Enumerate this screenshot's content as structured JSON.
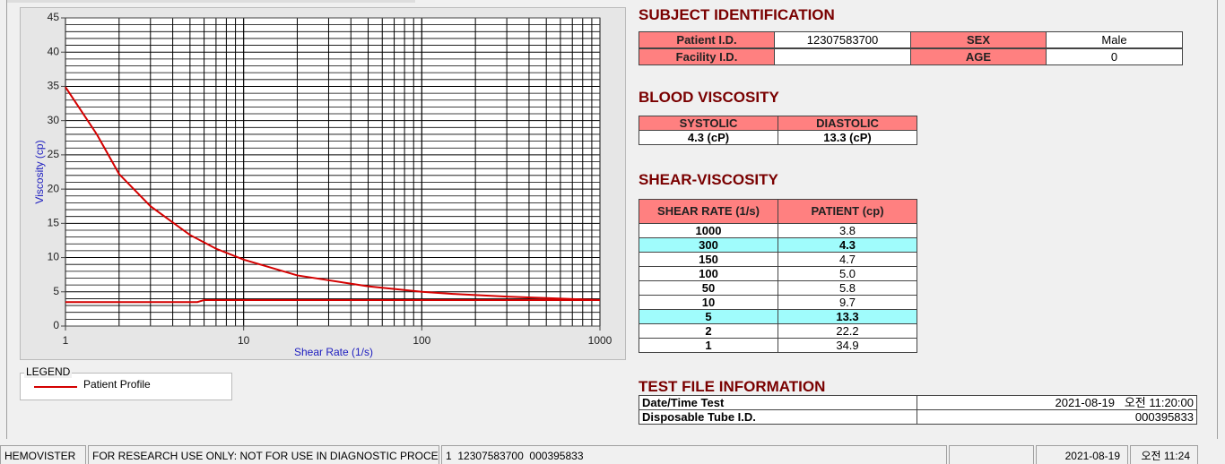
{
  "chart_data": {
    "type": "line",
    "x_label": "Shear Rate (1/s)",
    "y_label": "Viscosity (cp)",
    "log_x": true,
    "xlim": [
      1,
      1000
    ],
    "xticks": [
      1,
      10,
      100,
      1000
    ],
    "ylim": [
      0,
      45
    ],
    "yticks": [
      0,
      5,
      10,
      15,
      20,
      25,
      30,
      35,
      40,
      45
    ],
    "grid": true,
    "legend_title": "LEGEND",
    "series": [
      {
        "name": "Patient Profile",
        "color": "#d40000",
        "x": [
          1,
          1.5,
          2,
          3,
          5,
          7,
          10,
          20,
          50,
          100,
          150,
          300,
          1000
        ],
        "values": [
          34.9,
          28,
          22.2,
          17.5,
          13.3,
          11.3,
          9.7,
          7.4,
          5.8,
          5.0,
          4.7,
          4.3,
          3.8
        ]
      },
      {
        "color": "#d40000",
        "x": [
          1,
          5.5,
          6,
          1000
        ],
        "values": [
          3.5,
          3.5,
          3.8,
          3.8
        ]
      }
    ]
  },
  "subject": {
    "title": "SUBJECT IDENTIFICATION",
    "fields": [
      {
        "label": "Patient I.D.",
        "value": "12307583700"
      },
      {
        "label": "SEX",
        "value": "Male"
      },
      {
        "label": "Facility I.D."
      },
      {
        "label": "AGE",
        "value": "0"
      }
    ]
  },
  "blood_viscosity": {
    "title": "BLOOD VISCOSITY",
    "headers": [
      "SYSTOLIC",
      "DIASTOLIC"
    ],
    "values": [
      "4.3 (cP)",
      "13.3 (cP)"
    ]
  },
  "shear_viscosity": {
    "title": "SHEAR-VISCOSITY",
    "headers": [
      "SHEAR RATE (1/s)",
      "PATIENT (cp)"
    ],
    "rows": [
      {
        "rate": "1000",
        "viscosity": "3.8"
      },
      {
        "rate": "300",
        "viscosity": "4.3",
        "highlight": true
      },
      {
        "rate": "150",
        "viscosity": "4.7"
      },
      {
        "rate": "100",
        "viscosity": "5.0"
      },
      {
        "rate": "50",
        "viscosity": "5.8"
      },
      {
        "rate": "10",
        "viscosity": "9.7"
      },
      {
        "rate": "5",
        "viscosity": "13.3",
        "highlight": true
      },
      {
        "rate": "2",
        "viscosity": "22.2"
      },
      {
        "rate": "1",
        "viscosity": "34.9"
      }
    ]
  },
  "test_file": {
    "title": "TEST FILE INFORMATION",
    "rows": [
      {
        "label": "Date/Time Test",
        "value": "2021-08-19   오전 11:20:00"
      },
      {
        "label": "Disposable Tube I.D.",
        "value": "000395833"
      }
    ]
  },
  "status_bar": [
    "HEMOVISTER",
    "FOR RESEARCH USE ONLY: NOT FOR USE IN DIAGNOSTIC PROCEDURES",
    "1  12307583700  000395833",
    "2021-08-19",
    "오전 11:24"
  ]
}
